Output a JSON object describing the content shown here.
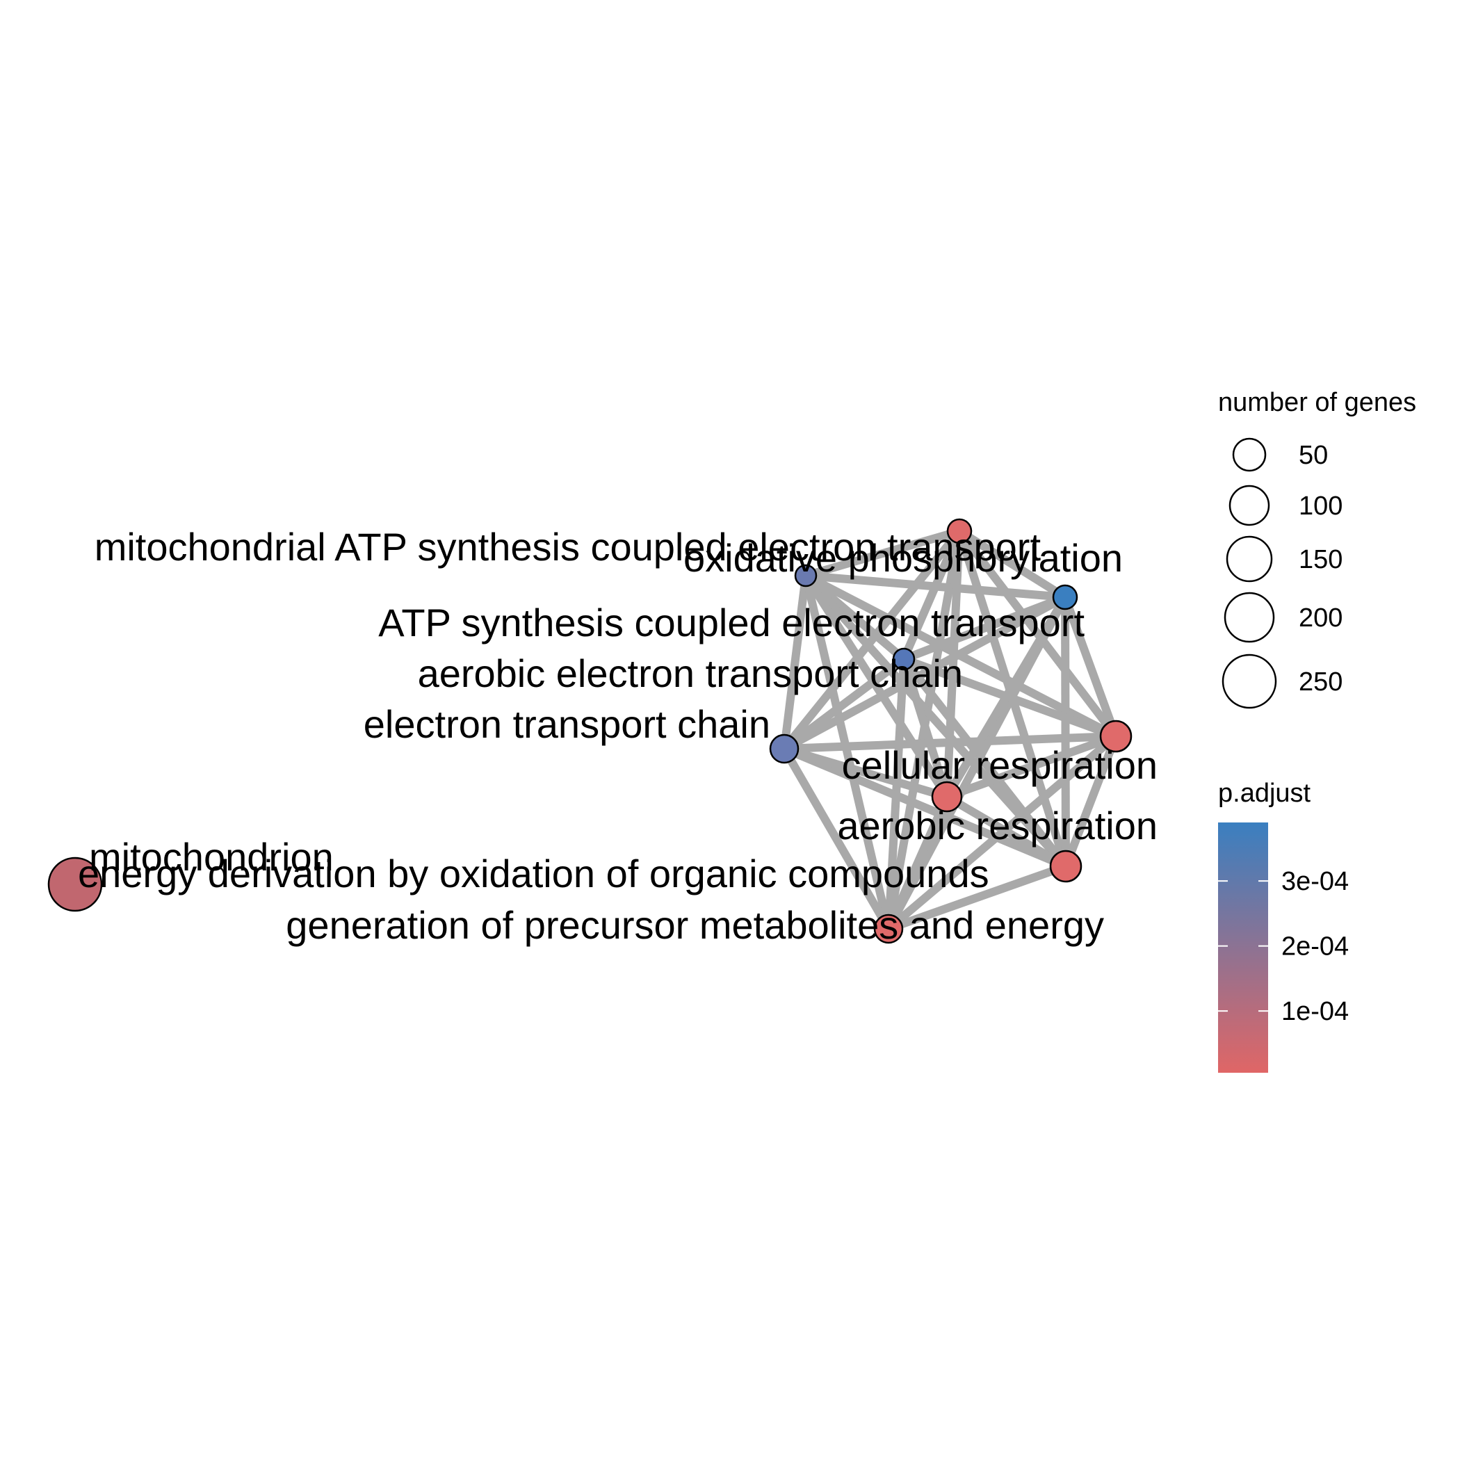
{
  "network": {
    "nodes": [
      {
        "id": "mito",
        "label": "mitochondrion",
        "genes": 260,
        "p_adjust": 0.00014,
        "color": "#c1676f"
      },
      {
        "id": "edao",
        "label": "energy derivation by oxidation of organic compounds",
        "genes": 8,
        "p_adjust": 3e-05,
        "color": "#c86870"
      },
      {
        "id": "oxphos",
        "label": "oxidative phosphorylation",
        "genes": 52,
        "p_adjust": 1e-05,
        "color": "#df6a6a"
      },
      {
        "id": "matp",
        "label": "mitochondrial ATP synthesis coupled electron transport",
        "genes": 45,
        "p_adjust": 0.00031,
        "color": "#6a7ab0"
      },
      {
        "id": "atp",
        "label": "ATP synthesis coupled electron transport",
        "genes": 45,
        "p_adjust": 0.00039,
        "color": "#3a7fc0"
      },
      {
        "id": "aetc",
        "label": "aerobic electron transport chain",
        "genes": 42,
        "p_adjust": 0.00034,
        "color": "#5577b8"
      },
      {
        "id": "etc",
        "label": "electron transport chain",
        "genes": 95,
        "p_adjust": 0.00029,
        "color": "#6a7cb4"
      },
      {
        "id": "gpme",
        "label": "generation of precursor metabolites and energy",
        "genes": 110,
        "p_adjust": 1e-05,
        "color": "#e06a6a"
      },
      {
        "id": "cr",
        "label": "cellular respiration",
        "genes": 100,
        "p_adjust": 1e-05,
        "color": "#e06a6a"
      },
      {
        "id": "ar",
        "label": "aerobic respiration",
        "genes": 85,
        "p_adjust": 1e-05,
        "color": "#e06a6a"
      }
    ],
    "edges": [
      [
        "oxphos",
        "matp"
      ],
      [
        "oxphos",
        "atp"
      ],
      [
        "oxphos",
        "aetc"
      ],
      [
        "oxphos",
        "etc"
      ],
      [
        "oxphos",
        "gpme"
      ],
      [
        "oxphos",
        "cr"
      ],
      [
        "oxphos",
        "ar"
      ],
      [
        "oxphos",
        "edao"
      ],
      [
        "matp",
        "atp"
      ],
      [
        "matp",
        "aetc"
      ],
      [
        "matp",
        "etc"
      ],
      [
        "matp",
        "gpme"
      ],
      [
        "matp",
        "cr"
      ],
      [
        "matp",
        "ar"
      ],
      [
        "matp",
        "edao"
      ],
      [
        "atp",
        "aetc"
      ],
      [
        "atp",
        "etc"
      ],
      [
        "atp",
        "gpme"
      ],
      [
        "atp",
        "cr"
      ],
      [
        "atp",
        "ar"
      ],
      [
        "atp",
        "edao"
      ],
      [
        "aetc",
        "etc"
      ],
      [
        "aetc",
        "gpme"
      ],
      [
        "aetc",
        "cr"
      ],
      [
        "aetc",
        "ar"
      ],
      [
        "aetc",
        "edao"
      ],
      [
        "etc",
        "gpme"
      ],
      [
        "etc",
        "cr"
      ],
      [
        "etc",
        "ar"
      ],
      [
        "etc",
        "edao"
      ],
      [
        "gpme",
        "cr"
      ],
      [
        "gpme",
        "ar"
      ],
      [
        "gpme",
        "edao"
      ],
      [
        "cr",
        "ar"
      ],
      [
        "cr",
        "edao"
      ],
      [
        "ar",
        "edao"
      ]
    ],
    "edge_color": "#a9a9a9"
  },
  "legend": {
    "size": {
      "title": "number of genes",
      "items": [
        {
          "label": "50",
          "genes": 50
        },
        {
          "label": "100",
          "genes": 100
        },
        {
          "label": "150",
          "genes": 150
        },
        {
          "label": "200",
          "genes": 200
        },
        {
          "label": "250",
          "genes": 250
        }
      ]
    },
    "color": {
      "title": "p.adjust",
      "ticks": [
        {
          "label": "3e-04",
          "value": 0.0003
        },
        {
          "label": "2e-04",
          "value": 0.0002
        },
        {
          "label": "1e-04",
          "value": 0.0001
        }
      ],
      "range": [
        5e-06,
        0.00039
      ],
      "low_color": "#e06666",
      "high_color": "#3a7fc0"
    }
  }
}
